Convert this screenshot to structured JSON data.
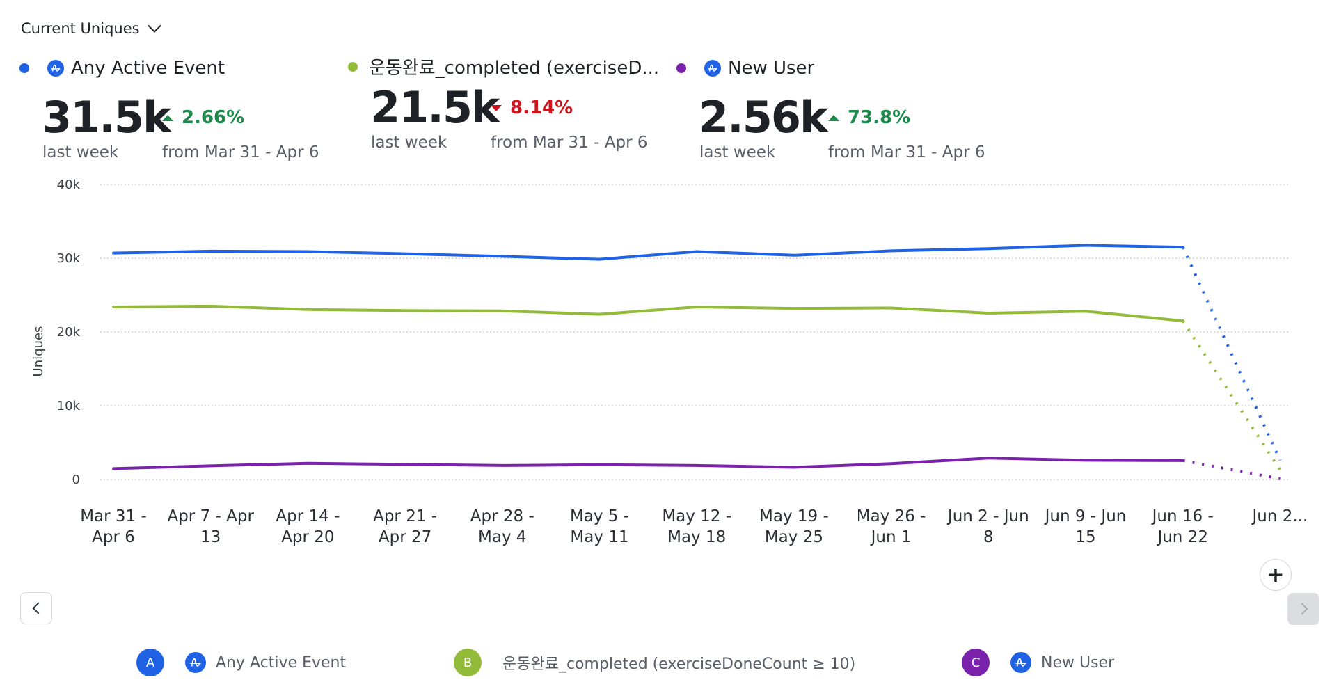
{
  "metric_selector": {
    "label": "Current Uniques"
  },
  "colors": {
    "blue": "#1f62e3",
    "green": "#93bb3a",
    "purple": "#7b22ad",
    "up": "#1e8a4c",
    "down": "#d0121b",
    "icon_bg": "#1f62e3"
  },
  "stats": [
    {
      "name": "Any Active Event",
      "value": "31.5k",
      "period": "last week",
      "delta": "2.66%",
      "direction": "up",
      "comparison": "from Mar 31 - Apr 6",
      "color": "#1f62e3",
      "has_icon": true
    },
    {
      "name": "운동완료_completed (exerciseD...",
      "value": "21.5k",
      "period": "last week",
      "delta": "8.14%",
      "direction": "down",
      "comparison": "from Mar 31 - Apr 6",
      "color": "#93bb3a",
      "has_icon": false
    },
    {
      "name": "New User",
      "value": "2.56k",
      "period": "last week",
      "delta": "73.8%",
      "direction": "up",
      "comparison": "from Mar 31 - Apr 6",
      "color": "#7b22ad",
      "has_icon": true
    }
  ],
  "chart_data": {
    "type": "line",
    "title": "",
    "xlabel": "",
    "ylabel": "Uniques",
    "ylim": [
      0,
      40000
    ],
    "yticks": [
      0,
      10000,
      20000,
      30000,
      40000
    ],
    "ytick_labels": [
      "0",
      "10k",
      "20k",
      "30k",
      "40k"
    ],
    "grid": true,
    "categories": [
      [
        "Mar 31 -",
        "Apr 6"
      ],
      [
        "Apr 7 - Apr",
        "13"
      ],
      [
        "Apr 14 -",
        "Apr 20"
      ],
      [
        "Apr 21 -",
        "Apr 27"
      ],
      [
        "Apr 28 -",
        "May 4"
      ],
      [
        "May 5 -",
        "May 11"
      ],
      [
        "May 12 -",
        "May 18"
      ],
      [
        "May 19 -",
        "May 25"
      ],
      [
        "May 26 -",
        "Jun 1"
      ],
      [
        "Jun 2 - Jun",
        "8"
      ],
      [
        "Jun 9 - Jun",
        "15"
      ],
      [
        "Jun 16 -",
        "Jun 22"
      ],
      [
        "Jun 2..."
      ]
    ],
    "incomplete_from_index": 11,
    "series": [
      {
        "name": "Any Active Event",
        "color": "#1f62e3",
        "values": [
          30700,
          30950,
          30900,
          30600,
          30250,
          29850,
          30900,
          30400,
          31000,
          31300,
          31750,
          31500,
          2600
        ]
      },
      {
        "name": "운동완료_completed (exerciseDoneCount ≥ 10)",
        "color": "#93bb3a",
        "values": [
          23400,
          23500,
          23050,
          22900,
          22850,
          22400,
          23400,
          23200,
          23250,
          22550,
          22800,
          21500,
          1300
        ]
      },
      {
        "name": "New User",
        "color": "#7b22ad",
        "values": [
          1470,
          1850,
          2200,
          2050,
          1900,
          2000,
          1900,
          1650,
          2150,
          2900,
          2600,
          2560,
          100
        ]
      }
    ]
  },
  "legend": [
    {
      "badge": "A",
      "label": "Any Active Event",
      "color": "#1f62e3",
      "has_icon": true
    },
    {
      "badge": "B",
      "label": "운동완료_completed (exerciseDoneCount ≥ 10)",
      "color": "#93bb3a",
      "has_icon": false
    },
    {
      "badge": "C",
      "label": "New User",
      "color": "#7b22ad",
      "has_icon": true
    }
  ],
  "controls": {
    "add_label": "+"
  }
}
